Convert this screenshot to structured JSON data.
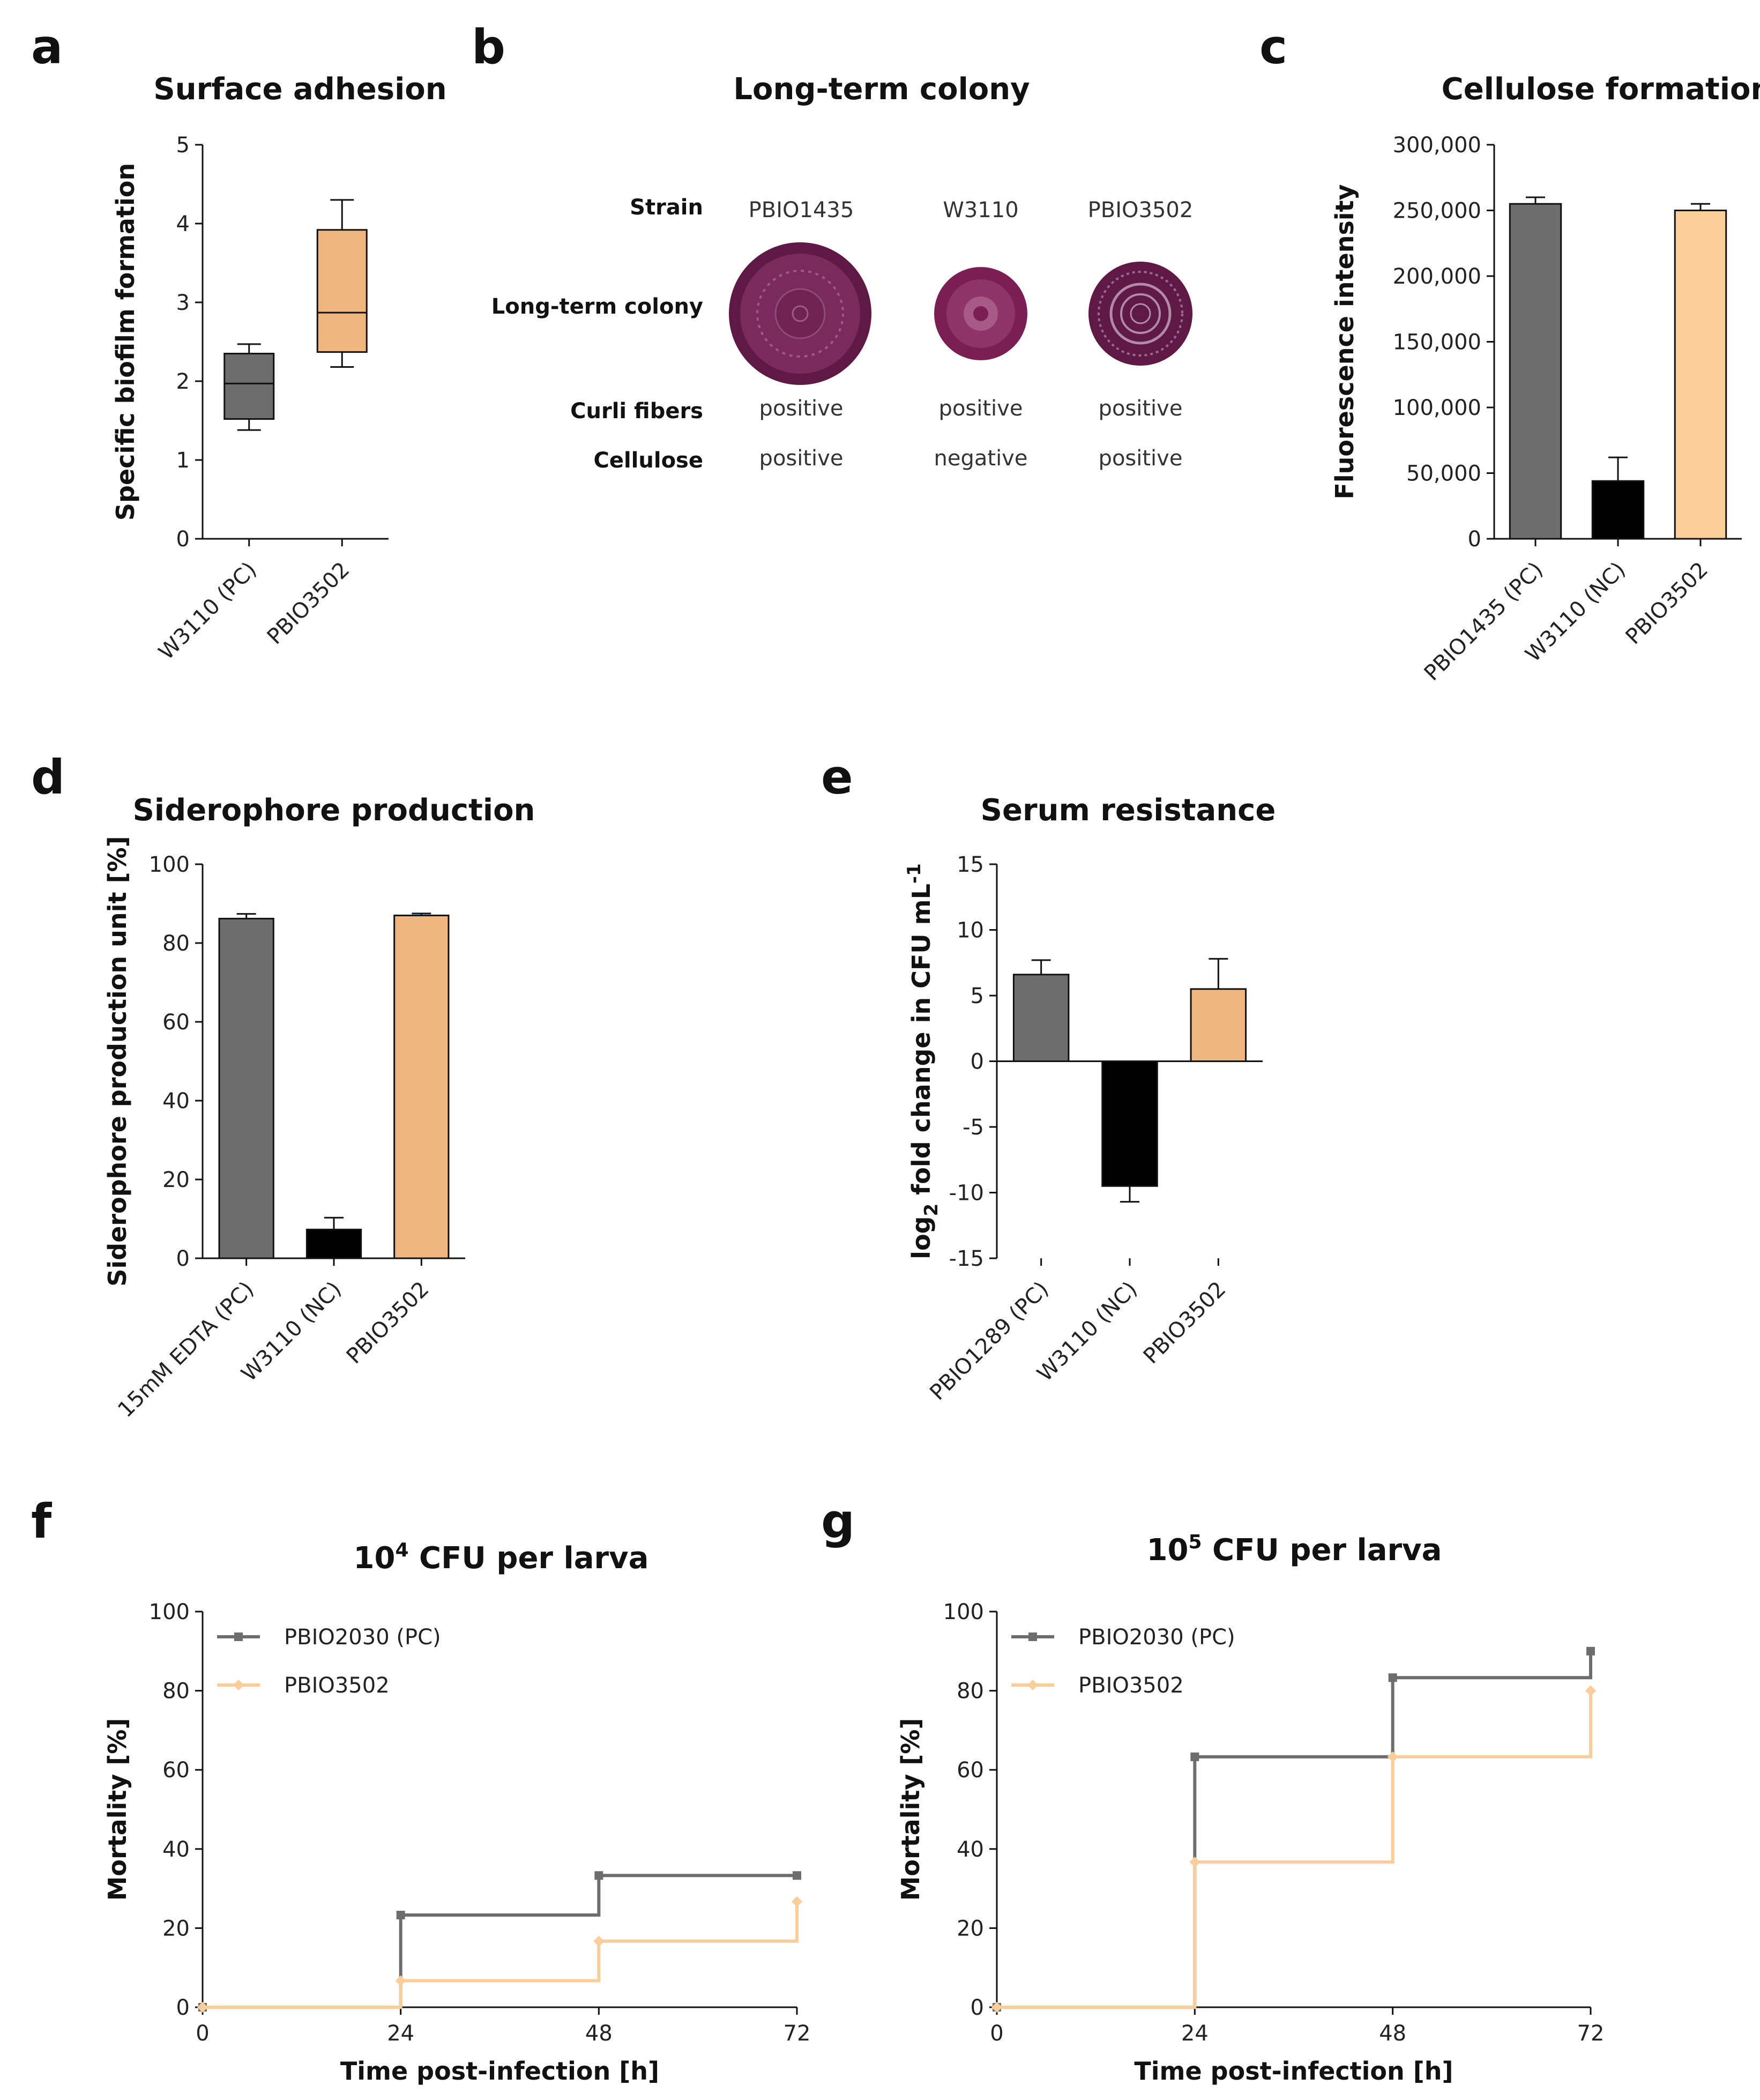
{
  "panels": {
    "a": "a",
    "b": "b",
    "c": "c",
    "d": "d",
    "e": "e",
    "f": "f",
    "g": "g"
  },
  "colors": {
    "gray": "#6d6d6d",
    "black": "#000000",
    "orange": "#f0b67f",
    "peach": "#fbcd99"
  },
  "colony": {
    "title": "Long-term colony",
    "rows": [
      "Strain",
      "Long-term colony",
      "Curli fibers",
      "Cellulose"
    ],
    "strains": [
      "PBIO1435",
      "W3110",
      "PBIO3502"
    ],
    "curli": [
      "positive",
      "positive",
      "positive"
    ],
    "cellulose": [
      "positive",
      "negative",
      "positive"
    ],
    "colony_color": "#6b1f4f"
  },
  "chart_data": [
    {
      "id": "a",
      "type": "box",
      "title": "Surface adhesion",
      "xlabel": "",
      "ylabel": "Specific biofilm formation",
      "ylim": [
        0,
        5
      ],
      "yticks": [
        "0",
        "1",
        "2",
        "3",
        "4",
        "5"
      ],
      "categories": [
        "W3110 (PC)",
        "PBIO3502"
      ],
      "boxes": [
        {
          "min": 1.38,
          "q1": 1.52,
          "median": 1.97,
          "q3": 2.35,
          "max": 2.47,
          "color": "#6d6d6d"
        },
        {
          "min": 2.18,
          "q1": 2.37,
          "median": 2.87,
          "q3": 3.92,
          "max": 4.3,
          "color": "#f0b67f"
        }
      ]
    },
    {
      "id": "c",
      "type": "bar",
      "title": "Cellulose formation",
      "xlabel": "",
      "ylabel": "Fluorescence intensity",
      "ylim": [
        0,
        300000
      ],
      "yticks": [
        "0",
        "50,000",
        "100,000",
        "150,000",
        "200,000",
        "250,000",
        "300,000"
      ],
      "categories": [
        "PBIO1435 (PC)",
        "W3110 (NC)",
        "PBIO3502"
      ],
      "values": [
        255000,
        44000,
        250000
      ],
      "errors": [
        5000,
        18000,
        5000
      ],
      "colors": [
        "#6d6d6d",
        "#000000",
        "#fbcd99"
      ]
    },
    {
      "id": "d",
      "type": "bar",
      "title": "Siderophore production",
      "xlabel": "",
      "ylabel": "Siderophore production unit [%]",
      "ylim": [
        0,
        100
      ],
      "yticks": [
        "0",
        "20",
        "40",
        "60",
        "80",
        "100"
      ],
      "categories": [
        "15mM EDTA (PC)",
        "W3110 (NC)",
        "PBIO3502"
      ],
      "values": [
        86.2,
        7.3,
        87.0
      ],
      "errors": [
        1.2,
        3.0,
        0.5
      ],
      "colors": [
        "#6d6d6d",
        "#000000",
        "#f0b67f"
      ]
    },
    {
      "id": "e",
      "type": "bar",
      "title": "Serum resistance",
      "xlabel": "",
      "ylabel": {
        "pre": "log",
        "sub": "2",
        "mid": " fold change in CFU mL",
        "sup": "-1"
      },
      "ylim": [
        -15,
        15
      ],
      "yticks": [
        "-15",
        "-10",
        "-5",
        "0",
        "5",
        "10",
        "15"
      ],
      "categories": [
        "PBIO1289 (PC)",
        "W3110 (NC)",
        "PBIO3502"
      ],
      "values": [
        6.6,
        -9.5,
        5.5
      ],
      "errors": [
        1.1,
        1.2,
        2.3
      ],
      "colors": [
        "#6d6d6d",
        "#000000",
        "#f0b67f"
      ]
    },
    {
      "id": "f",
      "type": "line",
      "title": {
        "pre": "10",
        "sup": "4",
        "post": " CFU per larva"
      },
      "xlabel": "Time post-infection [h]",
      "ylabel": "Mortality [%]",
      "xlim": [
        0,
        72
      ],
      "ylim": [
        0,
        100
      ],
      "xticks": [
        "0",
        "24",
        "48",
        "72"
      ],
      "yticks": [
        "0",
        "20",
        "40",
        "60",
        "80",
        "100"
      ],
      "x": [
        0,
        24,
        48,
        72
      ],
      "series": [
        {
          "name": "PBIO2030 (PC)",
          "values": [
            0,
            23.3,
            33.3,
            33.3
          ],
          "color": "#6d6d6d"
        },
        {
          "name": "PBIO3502",
          "values": [
            0,
            6.7,
            16.7,
            26.7
          ],
          "color": "#fbcd99"
        }
      ]
    },
    {
      "id": "g",
      "type": "line",
      "title": {
        "pre": "10",
        "sup": "5",
        "post": " CFU per larva"
      },
      "xlabel": "Time post-infection [h]",
      "ylabel": "Mortality [%]",
      "xlim": [
        0,
        72
      ],
      "ylim": [
        0,
        100
      ],
      "xticks": [
        "0",
        "24",
        "48",
        "72"
      ],
      "yticks": [
        "0",
        "20",
        "40",
        "60",
        "80",
        "100"
      ],
      "x": [
        0,
        24,
        48,
        72
      ],
      "series": [
        {
          "name": "PBIO2030 (PC)",
          "values": [
            0,
            63.3,
            83.3,
            90.0
          ],
          "color": "#6d6d6d"
        },
        {
          "name": "PBIO3502",
          "values": [
            0,
            36.7,
            63.3,
            80.0
          ],
          "color": "#fbcd99"
        }
      ]
    }
  ]
}
